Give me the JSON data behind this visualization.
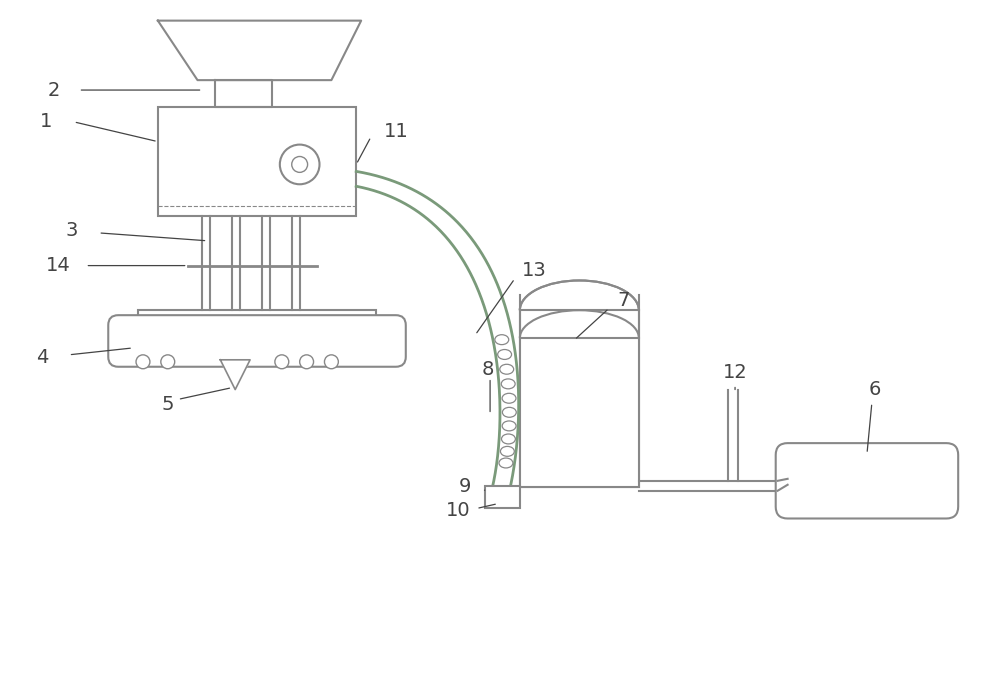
{
  "bg_color": "#ffffff",
  "line_color": "#888888",
  "green_line": "#7a9a7a",
  "label_color": "#444444",
  "figsize": [
    10.0,
    6.74
  ],
  "dpi": 100
}
